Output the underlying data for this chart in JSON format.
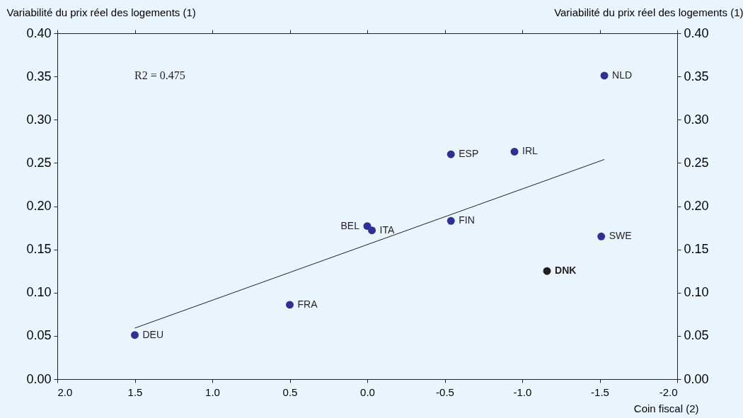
{
  "chart_data": {
    "type": "scatter",
    "xlabel": "Coin fiscal (2)",
    "ylabel": "Variabilité du prix réel des logements (1)",
    "y2label": "Variabilité du prix réel des logements (1)",
    "xlim": [
      2.0,
      -2.0
    ],
    "xticks": [
      {
        "value": 2,
        "label": "2.0"
      },
      {
        "value": 1.5,
        "label": "1.5"
      },
      {
        "value": 1,
        "label": "1.0"
      },
      {
        "value": 0.5,
        "label": "0.5"
      },
      {
        "value": 0,
        "label": "0.0"
      },
      {
        "value": -0.5,
        "label": "-0.5"
      },
      {
        "value": -1,
        "label": "-1.0"
      },
      {
        "value": -1.5,
        "label": "-1.5"
      },
      {
        "value": -2,
        "label": "-2.0"
      }
    ],
    "ylim": [
      0,
      0.4
    ],
    "yticks": [
      {
        "value": 0,
        "label": "0.00"
      },
      {
        "value": 0.05,
        "label": "0.05"
      },
      {
        "value": 0.1,
        "label": "0.10"
      },
      {
        "value": 0.15,
        "label": "0.15"
      },
      {
        "value": 0.2,
        "label": "0.20"
      },
      {
        "value": 0.25,
        "label": "0.25"
      },
      {
        "value": 0.3,
        "label": "0.30"
      },
      {
        "value": 0.35,
        "label": "0.35"
      },
      {
        "value": 0.4,
        "label": "0.40"
      }
    ],
    "y2lim": [
      0,
      0.4
    ],
    "y2ticks": [
      {
        "value": 0,
        "label": "0.00"
      },
      {
        "value": 0.05,
        "label": "0.05"
      },
      {
        "value": 0.1,
        "label": "0.10"
      },
      {
        "value": 0.15,
        "label": "0.15"
      },
      {
        "value": 0.2,
        "label": "0.20"
      },
      {
        "value": 0.25,
        "label": "0.25"
      },
      {
        "value": 0.3,
        "label": "0.30"
      },
      {
        "value": 0.35,
        "label": "0.35"
      },
      {
        "value": 0.4,
        "label": "0.40"
      }
    ],
    "grid": false,
    "series": [
      {
        "marker": "circle",
        "color": "#2e3192",
        "x": [
          1.5,
          0.5,
          0.0,
          -0.03,
          -0.54,
          -0.54,
          -0.95,
          -1.53,
          -1.51
        ],
        "values": [
          0.051,
          0.086,
          0.177,
          0.172,
          0.26,
          0.183,
          0.263,
          0.351,
          0.165
        ]
      },
      {
        "marker": "circle",
        "name": "DNK",
        "color": "#231f20",
        "x": [
          -1.16
        ],
        "values": [
          0.125
        ]
      },
      {
        "type": "line",
        "color": "#231f20",
        "x": [
          1.5,
          -1.53
        ],
        "values": [
          0.059,
          0.254
        ]
      }
    ],
    "annotations": [
      "R2 = 0.475",
      {
        "text": "DEU",
        "x": 1.5,
        "y": 0.051
      },
      {
        "text": "FRA",
        "x": 0.5,
        "y": 0.086
      },
      {
        "text": "BEL",
        "x": 0.0,
        "y": 0.177
      },
      {
        "text": "ITA",
        "x": -0.03,
        "y": 0.172
      },
      {
        "text": "ESP",
        "x": -0.54,
        "y": 0.26
      },
      {
        "text": "FIN",
        "x": -0.54,
        "y": 0.183
      },
      {
        "text": "IRL",
        "x": -0.95,
        "y": 0.263
      },
      {
        "text": "NLD",
        "x": -1.53,
        "y": 0.351
      },
      {
        "text": "SWE",
        "x": -1.51,
        "y": 0.165
      }
    ]
  }
}
